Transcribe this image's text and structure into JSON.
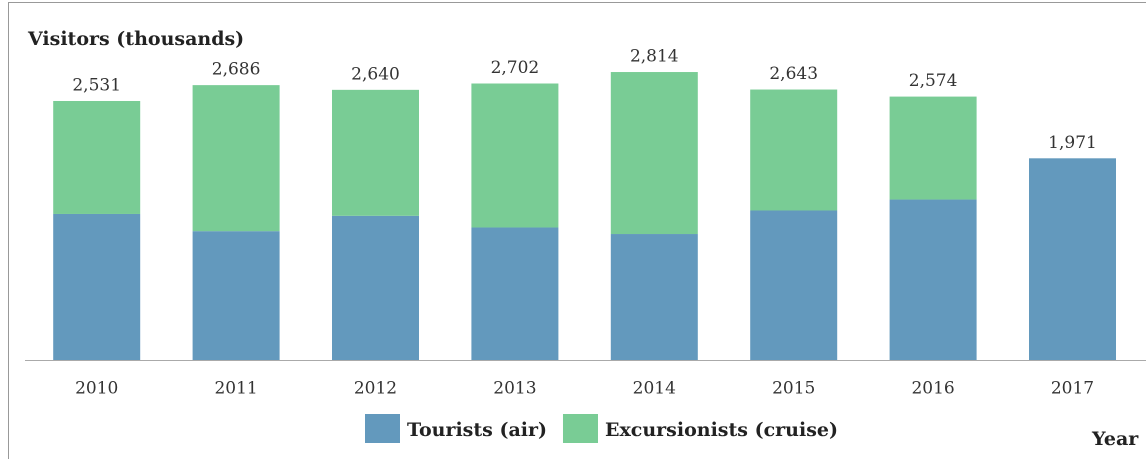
{
  "chart_data": {
    "type": "stacked_bar",
    "y_label": "Visitors (thousands)",
    "x_label": "Year",
    "categories": [
      "2010",
      "2011",
      "2012",
      "2013",
      "2014",
      "2015",
      "2016",
      "2017"
    ],
    "series": [
      {
        "name": "Tourists (air)",
        "color": "#6399bd",
        "values": [
          1427,
          1259,
          1409,
          1295,
          1231,
          1461,
          1568,
          1971
        ]
      },
      {
        "name": "Excursionists (cruise)",
        "color": "#79cc95",
        "values": [
          1104,
          1427,
          1231,
          1407,
          1583,
          1182,
          1006,
          null
        ]
      }
    ],
    "totals": [
      2531,
      2686,
      2640,
      2702,
      2814,
      2643,
      2574,
      1971
    ],
    "total_labels": [
      "2,531",
      "2,686",
      "2,640",
      "2,702",
      "2,814",
      "2,643",
      "2,574",
      "1,971"
    ],
    "ylim": [
      0,
      3000
    ],
    "legend": "bottom"
  }
}
